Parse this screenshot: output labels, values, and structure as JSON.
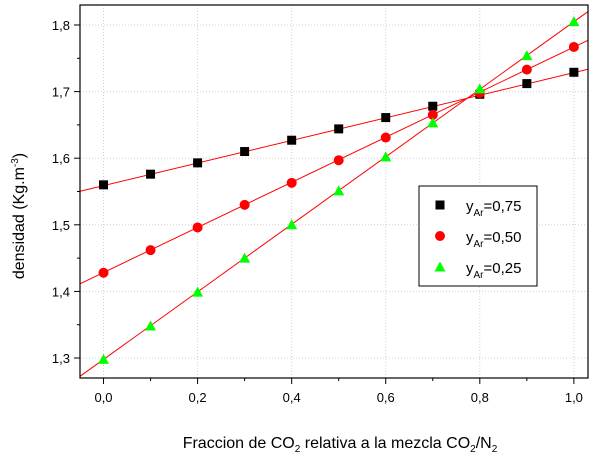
{
  "chart_data": {
    "type": "scatter",
    "title": "",
    "xlabel": {
      "prefix": "Fraccion de CO",
      "sub1": "2",
      "middle": " relativa a la mezcla CO",
      "sub2": "2",
      "slash": "/N",
      "sub3": "2"
    },
    "ylabel": {
      "prefix": "densidad (Kg.m",
      "sup": "-3",
      "suffix": ")"
    },
    "xlim": [
      -0.05,
      1.03
    ],
    "ylim": [
      1.27,
      1.83
    ],
    "x_ticks": [
      0.0,
      0.2,
      0.4,
      0.6,
      0.8,
      1.0
    ],
    "x_tick_labels": [
      "0,0",
      "0,2",
      "0,4",
      "0,6",
      "0,8",
      "1,0"
    ],
    "y_ticks": [
      1.3,
      1.4,
      1.5,
      1.6,
      1.7,
      1.8
    ],
    "y_tick_labels": [
      "1,3",
      "1,4",
      "1,5",
      "1,6",
      "1,7",
      "1,8"
    ],
    "grid": true,
    "legend_position": "right-middle",
    "x": [
      0.0,
      0.1,
      0.2,
      0.3,
      0.4,
      0.5,
      0.6,
      0.7,
      0.8,
      0.9,
      1.0
    ],
    "series": [
      {
        "name": "yAr=0,75",
        "legend": {
          "base": "y",
          "sub": "Ar",
          "value": "=0,75"
        },
        "marker": "square",
        "color": "#000000",
        "values": [
          1.56,
          1.576,
          1.593,
          1.61,
          1.627,
          1.644,
          1.661,
          1.678,
          1.696,
          1.712,
          1.729
        ],
        "fit": {
          "intercept": 1.5588,
          "slope": 0.1696
        }
      },
      {
        "name": "yAr=0,50",
        "legend": {
          "base": "y",
          "sub": "Ar",
          "value": "=0,50"
        },
        "marker": "circle",
        "color": "#ff0000",
        "values": [
          1.428,
          1.462,
          1.496,
          1.53,
          1.563,
          1.597,
          1.631,
          1.665,
          1.698,
          1.733,
          1.767
        ],
        "fit": {
          "intercept": 1.4284,
          "slope": 0.3385
        }
      },
      {
        "name": "yAr=0,25",
        "legend": {
          "base": "y",
          "sub": "Ar",
          "value": "=0,25"
        },
        "marker": "triangle",
        "color": "#00ff00",
        "values": [
          1.298,
          1.348,
          1.399,
          1.45,
          1.5,
          1.551,
          1.602,
          1.653,
          1.704,
          1.754,
          1.805
        ],
        "fit": {
          "intercept": 1.2979,
          "slope": 0.507
        }
      }
    ],
    "fit_line_color": "#ff0000"
  }
}
